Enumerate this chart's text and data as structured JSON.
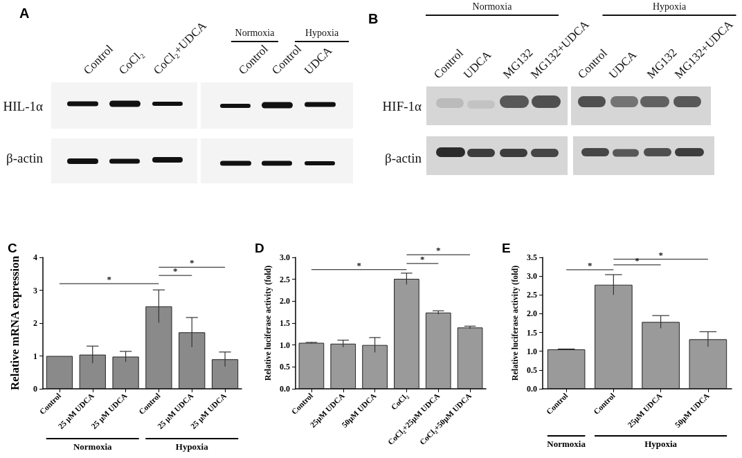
{
  "chart_data": [
    {
      "type": "other",
      "title": "A",
      "annotations": [
        "Control",
        "CoCl₂",
        "CoCl₂+UDCA",
        "Normoxia",
        "Hypoxia",
        "Control",
        "Control",
        "UDCA",
        "HIL-1α",
        "β-actin"
      ]
    },
    {
      "type": "other",
      "title": "B",
      "annotations": [
        "Normoxia",
        "Hypoxia",
        "Control",
        "UDCA",
        "MG132",
        "MG132+UDCA",
        "Control",
        "UDCA",
        "MG132",
        "MG132+UDCA",
        "HIF-1α",
        "β-actin"
      ]
    },
    {
      "type": "bar",
      "title": "C",
      "ylabel": "Relative mRNA expression",
      "categories": [
        "Control",
        "25 μM UDCA",
        "25 μM UDCA",
        "Control",
        "25 μM UDCA",
        "25 μM UDCA"
      ],
      "values": [
        1.0,
        1.04,
        0.98,
        2.51,
        1.72,
        0.9
      ],
      "errors": [
        null,
        0.26,
        0.16,
        0.5,
        0.45,
        0.22
      ],
      "color": "#8a8a8a",
      "ylim": [
        0,
        4
      ],
      "yticks": [
        0,
        1,
        2,
        3,
        4
      ],
      "annotations": [
        "*",
        "*",
        "*",
        "Normoxia",
        "Hypoxia"
      ]
    },
    {
      "type": "bar",
      "title": "D",
      "ylabel": "Relative luciferase activity (fold)",
      "categories": [
        "Control",
        "25μM UDCA",
        "50μM UDCA",
        "CoCl₂",
        "CoCl₂+25μM UDCA",
        "CoCl₂+50μM UDCA"
      ],
      "values": [
        1.05,
        1.03,
        1.0,
        2.51,
        1.74,
        1.4
      ],
      "errors": [
        0.01,
        0.08,
        0.17,
        0.13,
        0.04,
        0.03
      ],
      "color": "#9a9a9a",
      "ylim": [
        0,
        3
      ],
      "yticks": [
        {
          "value": 0,
          "label": "0.0"
        },
        {
          "value": 0.5,
          "label": "0.5"
        },
        {
          "value": 1,
          "label": "1.0"
        },
        {
          "value": 1.5,
          "label": "1.5"
        },
        {
          "value": 2,
          "label": "2.0"
        },
        {
          "value": 2.5,
          "label": "2.5"
        },
        {
          "value": 3,
          "label": "3.0"
        }
      ],
      "annotations": [
        "*",
        "*",
        "*"
      ]
    },
    {
      "type": "bar",
      "title": "E",
      "ylabel": "Relative luciferase activity (fold)",
      "categories": [
        "Control",
        "Control",
        "25μM UDCA",
        "50μM UDCA"
      ],
      "values": [
        1.05,
        2.77,
        1.78,
        1.32
      ],
      "errors": [
        0.01,
        0.27,
        0.17,
        0.2
      ],
      "color": "#9a9a9a",
      "ylim": [
        0,
        3.5
      ],
      "yticks": [
        {
          "value": 0,
          "label": "0.0"
        },
        {
          "value": 0.5,
          "label": "0.5"
        },
        {
          "value": 1,
          "label": "1.0"
        },
        {
          "value": 1.5,
          "label": "1.5"
        },
        {
          "value": 2,
          "label": "2.0"
        },
        {
          "value": 2.5,
          "label": "2.5"
        },
        {
          "value": 3,
          "label": "3.0"
        },
        {
          "value": 3.5,
          "label": "3.5"
        }
      ],
      "annotations": [
        "*",
        "*",
        "*",
        "Normoxia",
        "Hypoxia"
      ]
    }
  ]
}
